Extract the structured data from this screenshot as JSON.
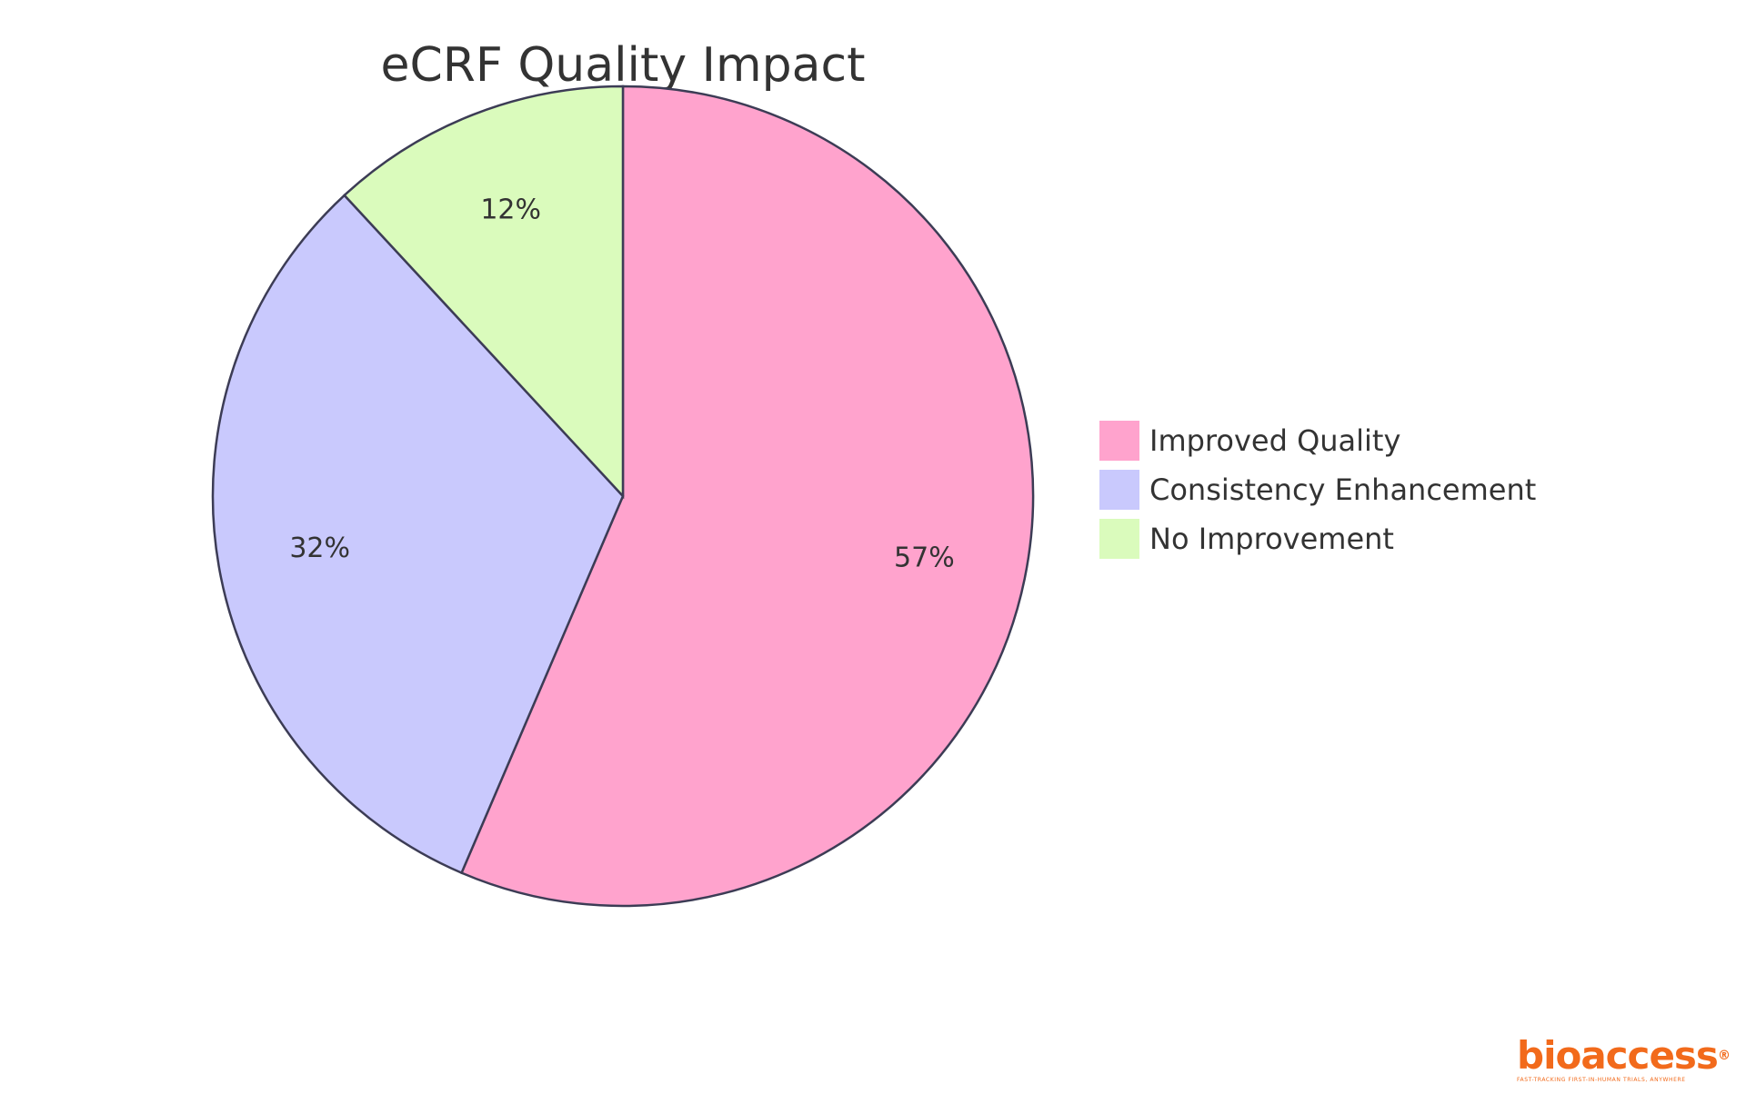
{
  "chart_data": {
    "type": "pie",
    "title": "eCRF Quality Impact",
    "slices": [
      {
        "name": "Improved Quality",
        "value": 57,
        "label": "57%",
        "color": "#ffa3cd"
      },
      {
        "name": "Consistency Enhancement",
        "value": 32,
        "label": "32%",
        "color": "#c9c9fd"
      },
      {
        "name": "No Improvement",
        "value": 12,
        "label": "12%",
        "color": "#dafbbc"
      }
    ],
    "legend_position": "right",
    "start_angle": "top",
    "direction": "clockwise"
  },
  "logo": {
    "text": "bioaccess",
    "mark": "®",
    "tagline": "FAST-TRACKING FIRST-IN-HUMAN TRIALS, ANYWHERE",
    "color": "#f26a1b"
  }
}
